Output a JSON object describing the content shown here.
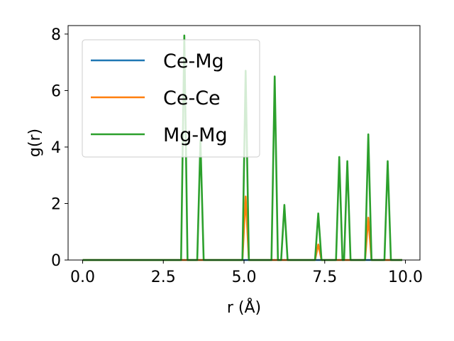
{
  "chart_data": {
    "type": "line",
    "xlabel": "r (Å)",
    "ylabel": "g(r)",
    "xlim": [
      -0.45,
      10.45
    ],
    "ylim": [
      0,
      8.3
    ],
    "xticks": [
      0.0,
      2.5,
      5.0,
      7.5,
      10.0
    ],
    "xtick_labels": [
      "0.0",
      "2.5",
      "5.0",
      "7.5",
      "10.0"
    ],
    "yticks": [
      0,
      2,
      4,
      6,
      8
    ],
    "ytick_labels": [
      "0",
      "2",
      "4",
      "6",
      "8"
    ],
    "grid": false,
    "legend_position": "upper-left",
    "series": [
      {
        "name": "Ce-Mg",
        "color": "#1f77b4",
        "points": [
          [
            0.0,
            0
          ],
          [
            9.9,
            0
          ]
        ]
      },
      {
        "name": "Ce-Ce",
        "color": "#ff7f0e",
        "points": [
          [
            0.0,
            0
          ],
          [
            4.95,
            0
          ],
          [
            5.05,
            2.25
          ],
          [
            5.15,
            0
          ],
          [
            7.2,
            0
          ],
          [
            7.3,
            0.55
          ],
          [
            7.4,
            0
          ],
          [
            8.75,
            0
          ],
          [
            8.85,
            1.5
          ],
          [
            8.95,
            0
          ],
          [
            9.9,
            0
          ]
        ]
      },
      {
        "name": "Mg-Mg",
        "color": "#2ca02c",
        "points": [
          [
            0.0,
            0
          ],
          [
            3.05,
            0
          ],
          [
            3.15,
            7.95
          ],
          [
            3.25,
            0
          ],
          [
            3.55,
            0
          ],
          [
            3.65,
            4.25
          ],
          [
            3.75,
            0
          ],
          [
            4.95,
            0
          ],
          [
            5.05,
            6.7
          ],
          [
            5.15,
            0
          ],
          [
            5.85,
            0
          ],
          [
            5.95,
            6.5
          ],
          [
            6.05,
            0
          ],
          [
            6.15,
            0
          ],
          [
            6.25,
            1.95
          ],
          [
            6.35,
            0
          ],
          [
            7.2,
            0
          ],
          [
            7.3,
            1.65
          ],
          [
            7.4,
            0
          ],
          [
            7.85,
            0
          ],
          [
            7.95,
            3.65
          ],
          [
            8.05,
            0
          ],
          [
            8.1,
            0
          ],
          [
            8.2,
            3.5
          ],
          [
            8.3,
            0
          ],
          [
            8.75,
            0
          ],
          [
            8.85,
            4.45
          ],
          [
            8.95,
            0
          ],
          [
            9.35,
            0
          ],
          [
            9.45,
            3.5
          ],
          [
            9.55,
            0
          ],
          [
            9.9,
            0
          ]
        ]
      }
    ]
  }
}
